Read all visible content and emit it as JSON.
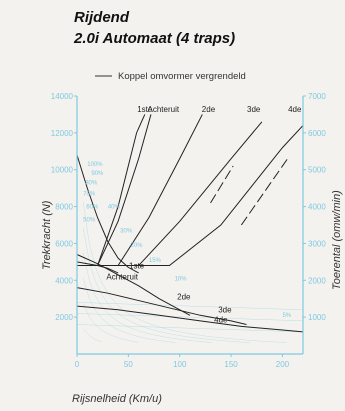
{
  "header": {
    "title": "Rijdend",
    "subtitle": "2.0i Automaat (4 traps)"
  },
  "chart_data": {
    "type": "line",
    "xlabel": "Rijsnelheid (Km/u)",
    "ylabel_left": "Trekkracht (N)",
    "ylabel_right": "Toerental (omw/min)",
    "xlim": [
      0,
      220
    ],
    "ylim_left": [
      0,
      14000
    ],
    "ylim_right": [
      0,
      7000
    ],
    "x_ticks": [
      "0",
      "50",
      "100",
      "150",
      "200"
    ],
    "y_ticks_left": [
      "2000",
      "4000",
      "6000",
      "8000",
      "10000",
      "12000",
      "14000"
    ],
    "y_ticks_right": [
      "1000",
      "2000",
      "3000",
      "4000",
      "5000",
      "6000",
      "7000"
    ],
    "legend": "Koppel omvormer vergrendeld",
    "traction_series": [
      {
        "name": "1ste",
        "points": [
          [
            0,
            10800
          ],
          [
            10,
            9000
          ],
          [
            20,
            7400
          ],
          [
            30,
            6100
          ],
          [
            40,
            5200
          ],
          [
            50,
            4700
          ],
          [
            60,
            4400
          ]
        ]
      },
      {
        "name": "2de",
        "points": [
          [
            0,
            5400
          ],
          [
            20,
            4900
          ],
          [
            40,
            4300
          ],
          [
            60,
            3700
          ],
          [
            80,
            3000
          ],
          [
            100,
            2400
          ],
          [
            110,
            2100
          ]
        ]
      },
      {
        "name": "3de",
        "points": [
          [
            0,
            3600
          ],
          [
            30,
            3300
          ],
          [
            60,
            2900
          ],
          [
            90,
            2500
          ],
          [
            120,
            2100
          ],
          [
            150,
            1800
          ],
          [
            165,
            1600
          ]
        ]
      },
      {
        "name": "4de",
        "points": [
          [
            0,
            2600
          ],
          [
            40,
            2400
          ],
          [
            80,
            2100
          ],
          [
            120,
            1800
          ],
          [
            160,
            1500
          ],
          [
            200,
            1300
          ],
          [
            220,
            1200
          ]
        ]
      },
      {
        "name": "Achteruit",
        "points": [
          [
            0,
            5000
          ],
          [
            10,
            4900
          ],
          [
            20,
            4800
          ],
          [
            30,
            4650
          ],
          [
            40,
            4400
          ]
        ]
      }
    ],
    "rpm_series": [
      {
        "name": "1ste",
        "points": [
          [
            0,
            2400
          ],
          [
            20,
            2400
          ],
          [
            40,
            3600
          ],
          [
            60,
            5300
          ],
          [
            72,
            6500
          ]
        ]
      },
      {
        "name": "Achteruit",
        "points": [
          [
            0,
            2400
          ],
          [
            20,
            2400
          ],
          [
            40,
            4000
          ],
          [
            58,
            6000
          ],
          [
            66,
            6500
          ]
        ]
      },
      {
        "name": "2de",
        "points": [
          [
            0,
            2400
          ],
          [
            40,
            2400
          ],
          [
            70,
            3700
          ],
          [
            100,
            5300
          ],
          [
            122,
            6500
          ]
        ]
      },
      {
        "name": "3de",
        "points": [
          [
            0,
            2400
          ],
          [
            60,
            2400
          ],
          [
            100,
            3600
          ],
          [
            150,
            5300
          ],
          [
            180,
            6300
          ]
        ]
      },
      {
        "name": "4de",
        "points": [
          [
            0,
            2400
          ],
          [
            90,
            2400
          ],
          [
            140,
            3500
          ],
          [
            200,
            5600
          ],
          [
            220,
            6200
          ]
        ]
      }
    ],
    "locked_series": [
      {
        "name": "3de",
        "points": [
          [
            130,
            4100
          ],
          [
            152,
            5100
          ]
        ]
      },
      {
        "name": "4de",
        "points": [
          [
            160,
            3500
          ],
          [
            205,
            5300
          ]
        ]
      }
    ],
    "gear_labels": [
      "1ste",
      "Achteruit",
      "2de",
      "3de",
      "4de"
    ],
    "efficiency_labels": [
      "100%",
      "90%",
      "80%",
      "70%",
      "60%",
      "50%",
      "40%",
      "30%",
      "20%",
      "15%",
      "10%",
      "5%"
    ],
    "colors": {
      "curve": "#222222",
      "scale": "#7fc9e0",
      "background": "#f4f2ee"
    }
  }
}
